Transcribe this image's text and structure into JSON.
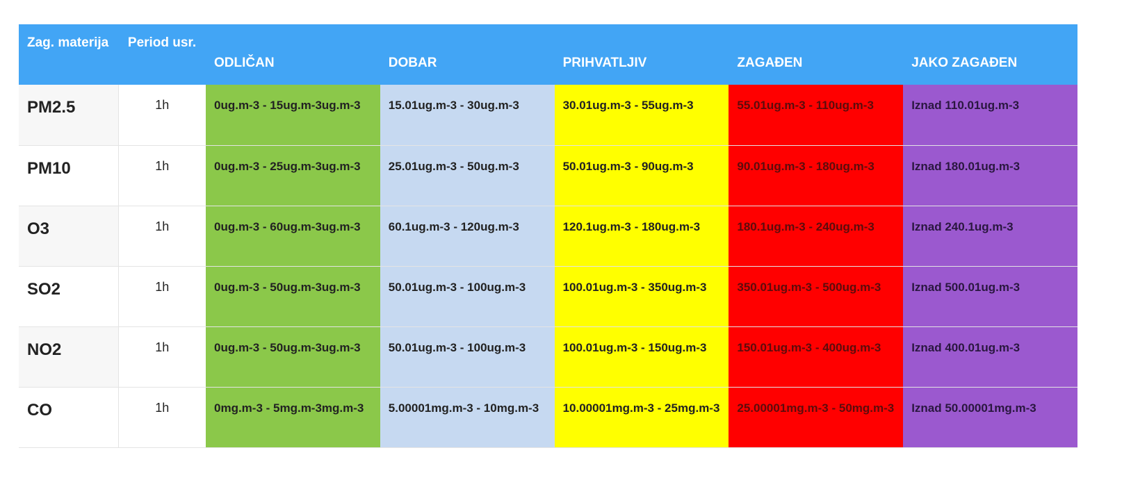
{
  "table": {
    "header": [
      "Zag. materija",
      "Period usr.",
      "ODLIČAN",
      "DOBAR",
      "PRIHVATLJIV",
      "ZAGAĐEN",
      "JAKO ZAGAĐEN"
    ],
    "rows": [
      [
        "PM2.5",
        "1h",
        "0ug.m-3 - 15ug.m-3ug.m-3",
        "15.01ug.m-3 - 30ug.m-3",
        "30.01ug.m-3 - 55ug.m-3",
        "55.01ug.m-3 - 110ug.m-3",
        "Iznad 110.01ug.m-3"
      ],
      [
        "PM10",
        "1h",
        "0ug.m-3 - 25ug.m-3ug.m-3",
        "25.01ug.m-3 - 50ug.m-3",
        "50.01ug.m-3 - 90ug.m-3",
        "90.01ug.m-3 - 180ug.m-3",
        "Iznad 180.01ug.m-3"
      ],
      [
        "O3",
        "1h",
        "0ug.m-3 - 60ug.m-3ug.m-3",
        "60.1ug.m-3 - 120ug.m-3",
        "120.1ug.m-3 - 180ug.m-3",
        "180.1ug.m-3 - 240ug.m-3",
        "Iznad 240.1ug.m-3"
      ],
      [
        "SO2",
        "1h",
        "0ug.m-3 - 50ug.m-3ug.m-3",
        "50.01ug.m-3 - 100ug.m-3",
        "100.01ug.m-3 - 350ug.m-3",
        "350.01ug.m-3 - 500ug.m-3",
        "Iznad 500.01ug.m-3"
      ],
      [
        "NO2",
        "1h",
        "0ug.m-3 - 50ug.m-3ug.m-3",
        "50.01ug.m-3 - 100ug.m-3",
        "100.01ug.m-3 - 150ug.m-3",
        "150.01ug.m-3 - 400ug.m-3",
        "Iznad 400.01ug.m-3"
      ],
      [
        "CO",
        "1h",
        "0mg.m-3 - 5mg.m-3mg.m-3",
        "5.00001mg.m-3 - 10mg.m-3",
        "10.00001mg.m-3 - 25mg.m-3",
        "25.00001mg.m-3 - 50mg.m-3",
        "Iznad 50.00001mg.m-3"
      ]
    ]
  }
}
